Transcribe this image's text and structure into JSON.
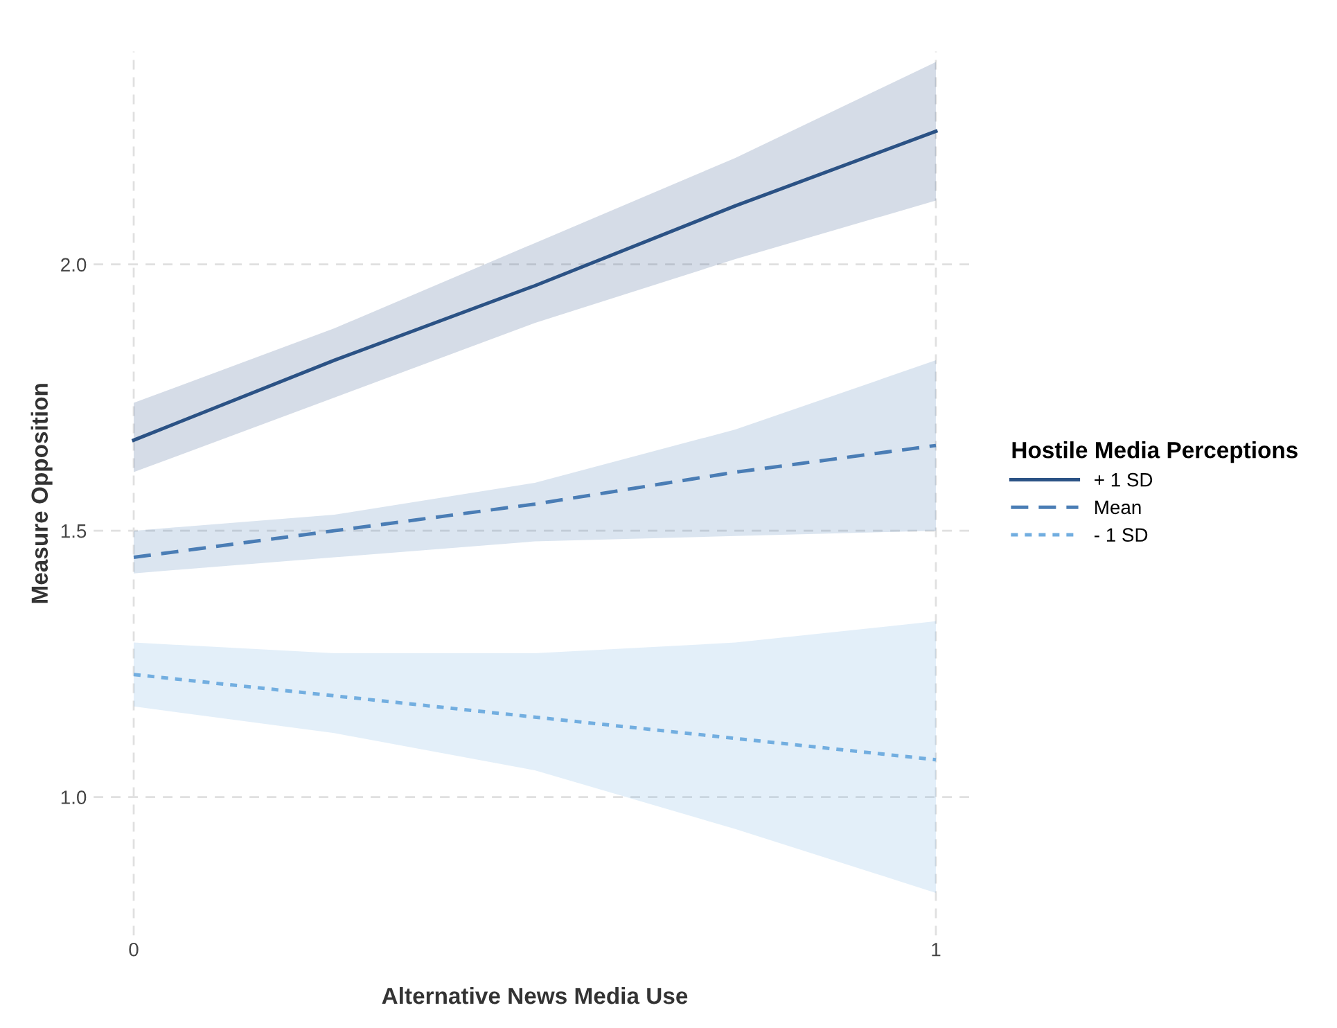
{
  "chart_data": {
    "type": "line",
    "xlabel": "Alternative News Media Use",
    "ylabel": "Measure Opposition",
    "legend_title": "Hostile Media Perceptions",
    "x": [
      0,
      0.25,
      0.5,
      0.75,
      1
    ],
    "series": [
      {
        "name": "+ 1 SD",
        "color": "#2b5285",
        "line_style": "solid",
        "values": [
          1.67,
          1.82,
          1.96,
          2.11,
          2.25
        ],
        "lower": [
          1.61,
          1.75,
          1.89,
          2.01,
          2.12
        ],
        "upper": [
          1.74,
          1.88,
          2.04,
          2.2,
          2.38
        ]
      },
      {
        "name": "Mean",
        "color": "#4a7db5",
        "line_style": "dashed",
        "values": [
          1.45,
          1.5,
          1.55,
          1.61,
          1.66
        ],
        "lower": [
          1.42,
          1.45,
          1.48,
          1.49,
          1.5
        ],
        "upper": [
          1.5,
          1.53,
          1.59,
          1.69,
          1.82
        ]
      },
      {
        "name": "- 1 SD",
        "color": "#72aee0",
        "line_style": "dotted",
        "values": [
          1.23,
          1.19,
          1.15,
          1.11,
          1.07
        ],
        "lower": [
          1.17,
          1.12,
          1.05,
          0.94,
          0.82
        ],
        "upper": [
          1.29,
          1.27,
          1.27,
          1.29,
          1.33
        ]
      }
    ],
    "xlim": [
      -0.05,
      1.05
    ],
    "ylim": [
      0.74,
      2.4
    ],
    "xticks": [
      0,
      1
    ],
    "yticks": [
      {
        "value": 1,
        "label": "1.0"
      },
      {
        "value": 1.5,
        "label": "1.5"
      },
      {
        "value": 2,
        "label": "2.0"
      }
    ],
    "grid": true,
    "legend": "right",
    "marker": "none"
  }
}
